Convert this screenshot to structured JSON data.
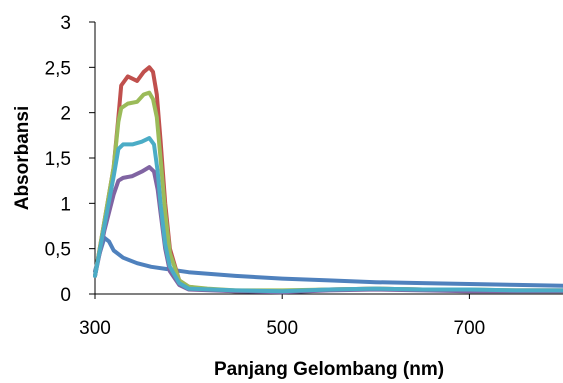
{
  "chart_data": {
    "type": "line",
    "title": "",
    "xlabel": "Panjang Gelombang (nm)",
    "ylabel": "Absorbansi",
    "xlim": [
      300,
      800
    ],
    "ylim": [
      0,
      3
    ],
    "x_ticks": [
      300,
      500,
      700
    ],
    "y_ticks": [
      0,
      0.5,
      1,
      1.5,
      2,
      2.5,
      3
    ],
    "y_tick_labels": [
      "0",
      "0,5",
      "1",
      "1,5",
      "2",
      "2,5",
      "3"
    ],
    "x_tick_labels": [
      "300",
      "500",
      "700"
    ],
    "grid": false,
    "legend": "none",
    "series": [
      {
        "color": "#4f81bd",
        "points": [
          [
            300,
            0.25
          ],
          [
            305,
            0.45
          ],
          [
            310,
            0.62
          ],
          [
            315,
            0.58
          ],
          [
            320,
            0.48
          ],
          [
            330,
            0.4
          ],
          [
            345,
            0.34
          ],
          [
            360,
            0.3
          ],
          [
            380,
            0.27
          ],
          [
            400,
            0.24
          ],
          [
            450,
            0.2
          ],
          [
            500,
            0.17
          ],
          [
            550,
            0.15
          ],
          [
            600,
            0.13
          ],
          [
            650,
            0.12
          ],
          [
            700,
            0.11
          ],
          [
            750,
            0.1
          ],
          [
            800,
            0.09
          ]
        ]
      },
      {
        "color": "#c0504d",
        "points": [
          [
            300,
            0.2
          ],
          [
            310,
            0.8
          ],
          [
            320,
            1.4
          ],
          [
            325,
            1.95
          ],
          [
            328,
            2.3
          ],
          [
            335,
            2.4
          ],
          [
            345,
            2.35
          ],
          [
            352,
            2.45
          ],
          [
            358,
            2.5
          ],
          [
            362,
            2.45
          ],
          [
            366,
            2.2
          ],
          [
            370,
            1.7
          ],
          [
            375,
            1.0
          ],
          [
            380,
            0.5
          ],
          [
            390,
            0.15
          ],
          [
            400,
            0.08
          ],
          [
            420,
            0.05
          ],
          [
            450,
            0.03
          ],
          [
            500,
            0.03
          ],
          [
            550,
            0.05
          ],
          [
            600,
            0.06
          ],
          [
            650,
            0.05
          ],
          [
            700,
            0.04
          ],
          [
            750,
            0.04
          ],
          [
            800,
            0.04
          ]
        ]
      },
      {
        "color": "#9bbb59",
        "points": [
          [
            300,
            0.2
          ],
          [
            310,
            0.8
          ],
          [
            320,
            1.4
          ],
          [
            325,
            1.9
          ],
          [
            328,
            2.05
          ],
          [
            335,
            2.1
          ],
          [
            345,
            2.12
          ],
          [
            352,
            2.2
          ],
          [
            358,
            2.22
          ],
          [
            362,
            2.15
          ],
          [
            366,
            1.95
          ],
          [
            370,
            1.5
          ],
          [
            375,
            0.9
          ],
          [
            380,
            0.45
          ],
          [
            390,
            0.15
          ],
          [
            400,
            0.08
          ],
          [
            420,
            0.06
          ],
          [
            450,
            0.04
          ],
          [
            500,
            0.04
          ],
          [
            550,
            0.05
          ],
          [
            600,
            0.06
          ],
          [
            650,
            0.05
          ],
          [
            700,
            0.05
          ],
          [
            750,
            0.04
          ],
          [
            800,
            0.04
          ]
        ]
      },
      {
        "color": "#8064a2",
        "points": [
          [
            300,
            0.2
          ],
          [
            310,
            0.7
          ],
          [
            320,
            1.1
          ],
          [
            325,
            1.25
          ],
          [
            330,
            1.28
          ],
          [
            340,
            1.3
          ],
          [
            350,
            1.35
          ],
          [
            358,
            1.4
          ],
          [
            363,
            1.35
          ],
          [
            367,
            1.15
          ],
          [
            370,
            0.9
          ],
          [
            375,
            0.5
          ],
          [
            380,
            0.25
          ],
          [
            390,
            0.1
          ],
          [
            400,
            0.05
          ],
          [
            450,
            0.03
          ],
          [
            500,
            0.02
          ],
          [
            550,
            0.04
          ],
          [
            600,
            0.05
          ],
          [
            650,
            0.04
          ],
          [
            700,
            0.03
          ],
          [
            750,
            0.03
          ],
          [
            800,
            0.03
          ]
        ]
      },
      {
        "color": "#4bacc6",
        "points": [
          [
            300,
            0.2
          ],
          [
            310,
            0.75
          ],
          [
            320,
            1.3
          ],
          [
            325,
            1.6
          ],
          [
            330,
            1.65
          ],
          [
            340,
            1.65
          ],
          [
            350,
            1.68
          ],
          [
            358,
            1.72
          ],
          [
            363,
            1.65
          ],
          [
            367,
            1.35
          ],
          [
            370,
            1.0
          ],
          [
            375,
            0.55
          ],
          [
            380,
            0.3
          ],
          [
            390,
            0.12
          ],
          [
            400,
            0.06
          ],
          [
            450,
            0.04
          ],
          [
            500,
            0.03
          ],
          [
            550,
            0.05
          ],
          [
            600,
            0.06
          ],
          [
            650,
            0.05
          ],
          [
            700,
            0.05
          ],
          [
            750,
            0.04
          ],
          [
            800,
            0.04
          ]
        ]
      }
    ]
  }
}
